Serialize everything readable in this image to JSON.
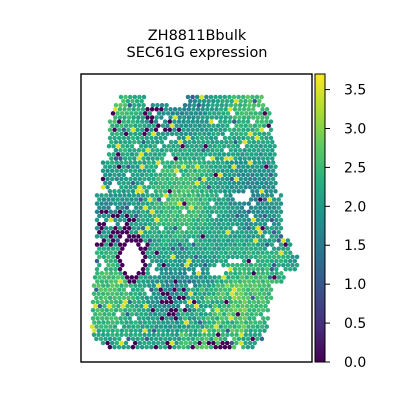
{
  "chart_data": {
    "type": "heatmap",
    "title": "ZH8811Bbulk",
    "subtitle": "SEC61G expression",
    "xlabel": "",
    "ylabel": "",
    "colormap": "viridis",
    "colorbar": {
      "min": 0.0,
      "max": 3.7,
      "ticks": [
        0.0,
        0.5,
        1.0,
        1.5,
        2.0,
        2.5,
        3.0,
        3.5
      ],
      "tick_labels": [
        "0.0",
        "0.5",
        "1.0",
        "1.5",
        "2.0",
        "2.5",
        "3.0",
        "3.5"
      ]
    },
    "value_distribution": {
      "typical_range": [
        1.5,
        2.8
      ],
      "low_spots_value": 0.0,
      "hot_spots_value": 3.5
    },
    "grid": false,
    "frame": true
  }
}
